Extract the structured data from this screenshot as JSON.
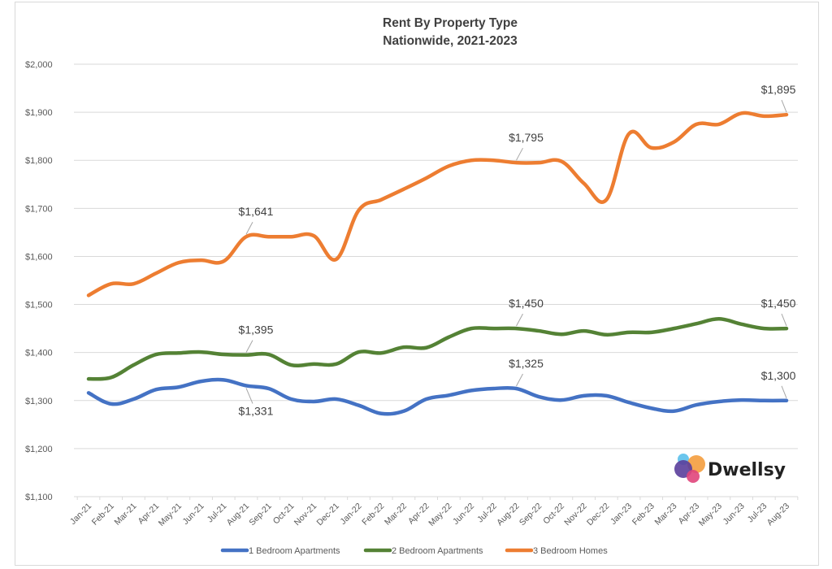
{
  "chart_data": {
    "type": "line",
    "title": "Rent By Property Type",
    "subtitle": "Nationwide, 2021-2023",
    "xlabel": "",
    "ylabel": "",
    "ylim": [
      1100,
      2000
    ],
    "yticks": [
      1100,
      1200,
      1300,
      1400,
      1500,
      1600,
      1700,
      1800,
      1900,
      2000
    ],
    "ytick_labels": [
      "$1,100",
      "$1,200",
      "$1,300",
      "$1,400",
      "$1,500",
      "$1,600",
      "$1,700",
      "$1,800",
      "$1,900",
      "$2,000"
    ],
    "grid": true,
    "legend_position": "bottom",
    "categories": [
      "Jan-21",
      "Feb-21",
      "Mar-21",
      "Apr-21",
      "May-21",
      "Jun-21",
      "Jul-21",
      "Aug-21",
      "Sep-21",
      "Oct-21",
      "Nov-21",
      "Dec-21",
      "Jan-22",
      "Feb-22",
      "Mar-22",
      "Apr-22",
      "May-22",
      "Jun-22",
      "Jul-22",
      "Aug-22",
      "Sep-22",
      "Oct-22",
      "Nov-22",
      "Dec-22",
      "Jan-23",
      "Feb-23",
      "Mar-23",
      "Apr-23",
      "May-23",
      "Jun-23",
      "Jul-23",
      "Aug-23"
    ],
    "series": [
      {
        "name": "1 Bedroom Apartments",
        "color": "#4472c4",
        "values": [
          1316,
          1293,
          1303,
          1323,
          1328,
          1340,
          1343,
          1331,
          1325,
          1303,
          1298,
          1303,
          1290,
          1273,
          1278,
          1303,
          1311,
          1321,
          1325,
          1325,
          1308,
          1301,
          1310,
          1310,
          1296,
          1284,
          1278,
          1291,
          1298,
          1301,
          1300,
          1300
        ],
        "annotations": [
          {
            "index": 7,
            "label": "$1,331",
            "position": "below"
          },
          {
            "index": 19,
            "label": "$1,325",
            "position": "above"
          },
          {
            "index": 31,
            "label": "$1,300",
            "position": "above"
          }
        ]
      },
      {
        "name": "2 Bedroom Apartments",
        "color": "#548235",
        "values": [
          1345,
          1348,
          1374,
          1396,
          1399,
          1401,
          1396,
          1395,
          1396,
          1374,
          1376,
          1376,
          1401,
          1399,
          1411,
          1410,
          1432,
          1450,
          1450,
          1450,
          1445,
          1438,
          1445,
          1437,
          1442,
          1442,
          1450,
          1460,
          1470,
          1459,
          1450,
          1450
        ],
        "annotations": [
          {
            "index": 7,
            "label": "$1,395",
            "position": "above"
          },
          {
            "index": 19,
            "label": "$1,450",
            "position": "above"
          },
          {
            "index": 31,
            "label": "$1,450",
            "position": "above"
          }
        ]
      },
      {
        "name": "3 Bedroom Homes",
        "color": "#ed7d31",
        "values": [
          1519,
          1543,
          1543,
          1565,
          1587,
          1592,
          1590,
          1641,
          1641,
          1641,
          1643,
          1594,
          1696,
          1718,
          1740,
          1763,
          1788,
          1800,
          1800,
          1795,
          1795,
          1798,
          1752,
          1718,
          1855,
          1826,
          1838,
          1875,
          1875,
          1898,
          1892,
          1895
        ],
        "annotations": [
          {
            "index": 7,
            "label": "$1,641",
            "position": "above"
          },
          {
            "index": 19,
            "label": "$1,795",
            "position": "above"
          },
          {
            "index": 31,
            "label": "$1,895",
            "position": "above"
          }
        ]
      }
    ]
  },
  "branding": {
    "logo_text": "Dwellsy",
    "logo_icon": "dwellsy-blobs-icon",
    "logo_colors": [
      "#5bc0eb",
      "#f4a042",
      "#5a3e9b",
      "#e0457b"
    ]
  },
  "colors": {
    "gridline": "#d9d9d9",
    "text": "#595959",
    "title": "#404040"
  }
}
